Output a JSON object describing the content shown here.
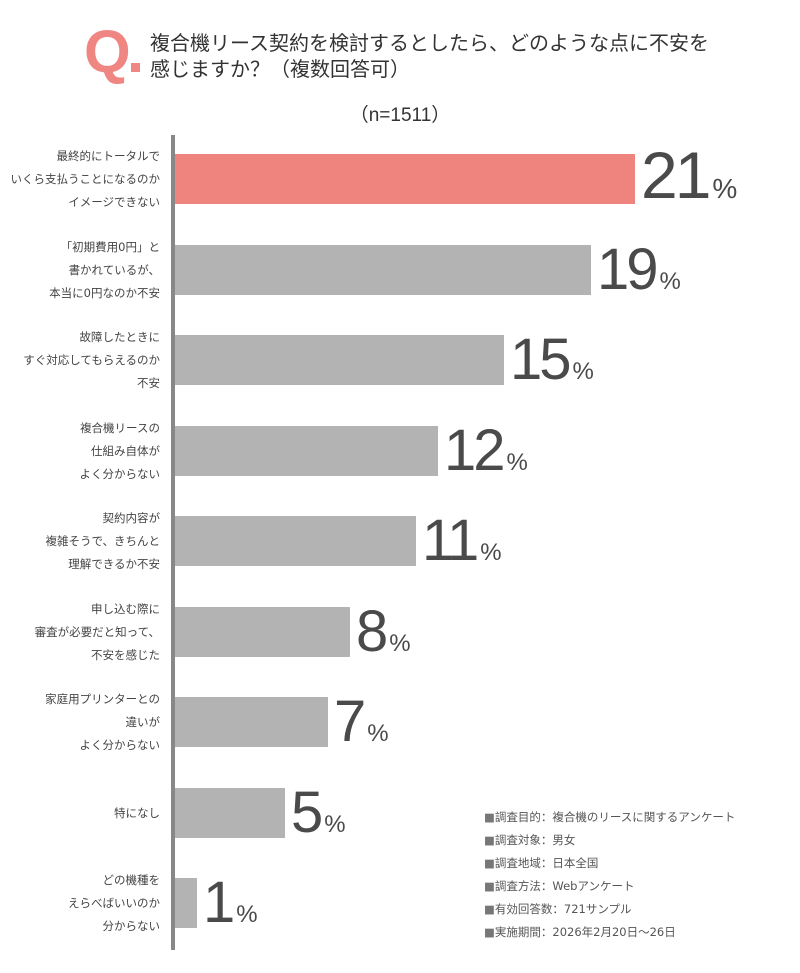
{
  "header": {
    "q_label": "Q",
    "question": "複合機リース契約を検討するとしたら、どのような点に不安を\n感じますか？（複数回答可）",
    "sample_size": "（n=1511）"
  },
  "colors": {
    "highlight": "#ef837d",
    "bar": "#b3b3b3",
    "axis": "#888888",
    "q_mark": "#ef8682"
  },
  "chart_data": {
    "type": "bar",
    "orientation": "horizontal",
    "title": "複合機リース契約を検討するとしたら、どのような点に不安を感じますか？（複数回答可）",
    "subtitle": "（n=1511）",
    "unit": "%",
    "categories": [
      "最終的にトータルでいくら支払うことになるのかイメージできない",
      "「初期費用0円」と書かれているが、本当に0円なのか不安",
      "故障したときにすぐ対応してもらえるのか不安",
      "複合機リースの仕組み自体がよく分からない",
      "契約内容が複雑そうで、きちんと理解できるか不安",
      "申し込む際に審査が必要だと知って、不安を感じた",
      "家庭用プリンターとの違いがよく分からない",
      "特になし",
      "どの機種をえらべばいいのか分からない"
    ],
    "values": [
      21,
      19,
      15,
      12,
      11,
      8,
      7,
      5,
      1
    ],
    "highlight_index": 0,
    "grid": false,
    "legend": null
  },
  "rows": [
    {
      "label": "最終的にトータルで\nいくら支払うことになるのか\nイメージできない",
      "value": "21",
      "pct": "%"
    },
    {
      "label": "「初期費用0円」と\n書かれているが、\n本当に0円なのか不安",
      "value": "19",
      "pct": "%"
    },
    {
      "label": "故障したときに\nすぐ対応してもらえるのか\n不安",
      "value": "15",
      "pct": "%"
    },
    {
      "label": "複合機リースの\n仕組み自体が\nよく分からない",
      "value": "12",
      "pct": "%"
    },
    {
      "label": "契約内容が\n複雑そうで、きちんと\n理解できるか不安",
      "value": "11",
      "pct": "%"
    },
    {
      "label": "申し込む際に\n審査が必要だと知って、\n不安を感じた",
      "value": "8",
      "pct": "%"
    },
    {
      "label": "家庭用プリンターとの\n違いが\nよく分からない",
      "value": "7",
      "pct": "%"
    },
    {
      "label": "特になし",
      "value": "5",
      "pct": "%"
    },
    {
      "label": "どの機種を\nえらべばいいのか\n分からない",
      "value": "1",
      "pct": "%"
    }
  ],
  "notes": [
    "調査目的：複合機のリースに関するアンケート",
    "調査対象：男女",
    "調査地域：日本全国",
    "調査方法：Webアンケート",
    "有効回答数：721サンプル",
    "実施期間：2026年2月20日～26日"
  ]
}
